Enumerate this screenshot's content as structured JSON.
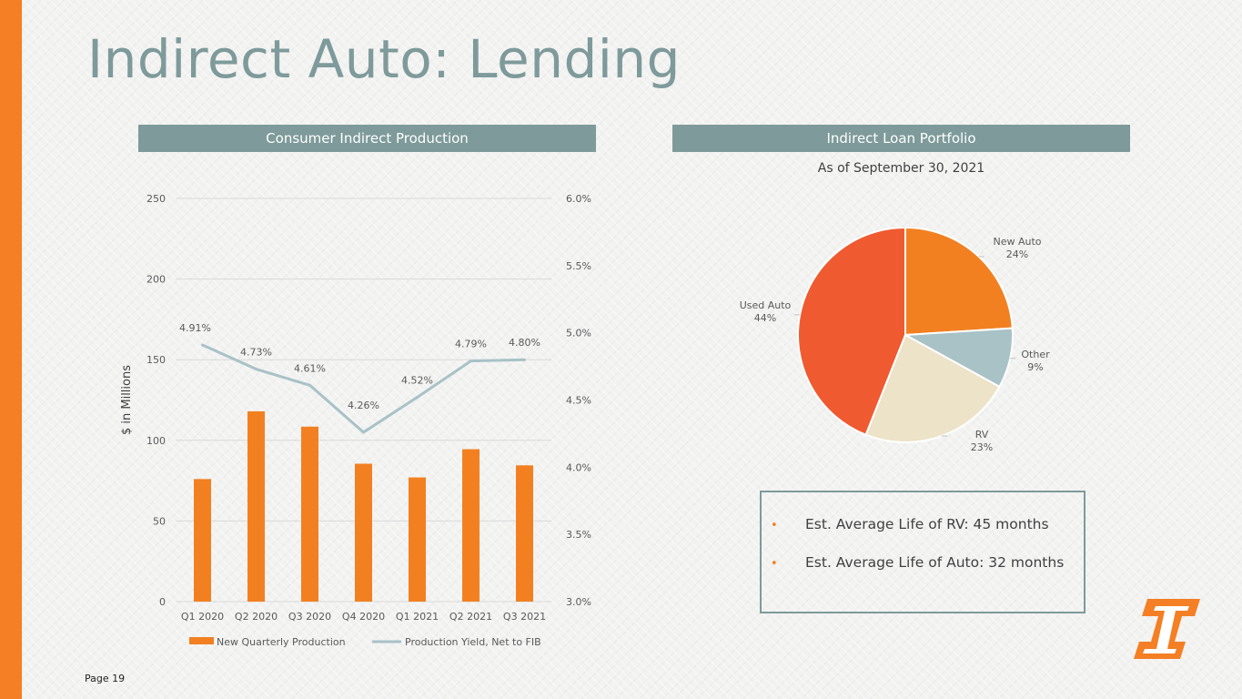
{
  "title": "Indirect Auto: Lending",
  "page_number": "Page 19",
  "colors": {
    "accent_orange": "#f47f24",
    "header_gray": "#7e9a9a",
    "bar_orange": "#f28021",
    "line_blue": "#a8c2c6",
    "slice_new_auto": "#f28021",
    "slice_other": "#a8c2c6",
    "slice_rv": "#ece3c8",
    "slice_used_auto": "#f05a30"
  },
  "left_panel": {
    "header": "Consumer Indirect Production"
  },
  "right_panel": {
    "header": "Indirect Loan Portfolio",
    "subtitle": "As of September 30, 2021",
    "info_items": [
      "Est. Average Life of RV:  45 months",
      "Est. Average Life of Auto:  32 months"
    ],
    "bullet_glyph": "•"
  },
  "chart_data": [
    {
      "type": "bar",
      "categories": [
        "Q1 2020",
        "Q2 2020",
        "Q3 2020",
        "Q4 2020",
        "Q1 2021",
        "Q2 2021",
        "Q3 2021"
      ],
      "ylabel": "$ in Millions",
      "ylim": [
        0,
        250
      ],
      "yticks": [
        "0",
        "50",
        "100",
        "150",
        "200",
        "250"
      ],
      "y2lim": [
        3.0,
        6.0
      ],
      "y2ticks": [
        "3.0%",
        "3.5%",
        "4.0%",
        "4.5%",
        "5.0%",
        "5.5%",
        "6.0%"
      ],
      "grid": true,
      "legend_position": "bottom",
      "series": [
        {
          "name": "New Quarterly Production",
          "type": "bar",
          "axis": "left",
          "values": [
            76,
            118,
            108.5,
            85.5,
            77,
            94.5,
            84.5
          ]
        },
        {
          "name": "Production Yield, Net to FIB",
          "type": "line",
          "axis": "right",
          "values": [
            4.91,
            4.73,
            4.61,
            4.26,
            4.52,
            4.79,
            4.8
          ],
          "labels": [
            "4.91%",
            "4.73%",
            "4.61%",
            "4.26%",
            "4.52%",
            "4.79%",
            "4.80%"
          ]
        }
      ]
    },
    {
      "type": "pie",
      "slices": [
        {
          "name": "New Auto",
          "value": 24,
          "label": "24%"
        },
        {
          "name": "Other",
          "value": 9,
          "label": "9%"
        },
        {
          "name": "RV",
          "value": 23,
          "label": "23%"
        },
        {
          "name": "Used Auto",
          "value": 44,
          "label": "44%"
        }
      ]
    }
  ]
}
